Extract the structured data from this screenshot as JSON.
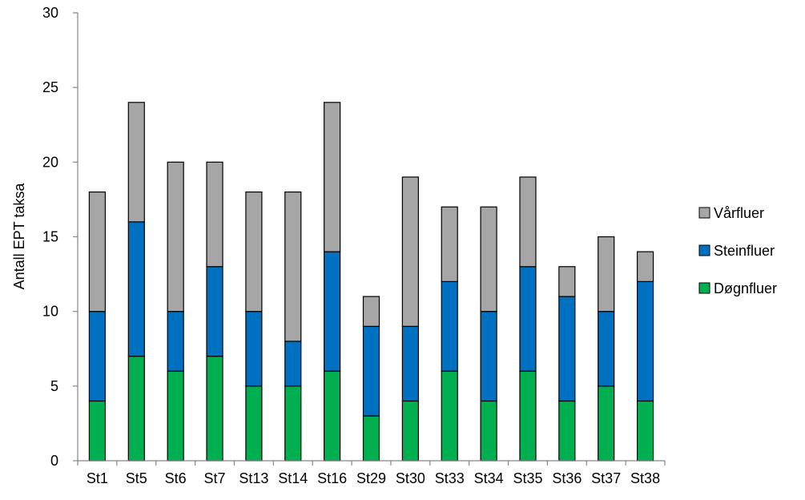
{
  "chart_data": {
    "type": "bar",
    "stacked": true,
    "ylabel": "Antall EPT taksa",
    "xlabel": "",
    "ylim": [
      0,
      30
    ],
    "yticks": [
      0,
      5,
      10,
      15,
      20,
      25,
      30
    ],
    "grid": false,
    "legend_position": "right",
    "categories": [
      "St1",
      "St5",
      "St6",
      "St7",
      "St13",
      "St14",
      "St16",
      "St29",
      "St30",
      "St33",
      "St34",
      "St35",
      "St36",
      "St37",
      "St38"
    ],
    "series": [
      {
        "name": "Døgnfluer",
        "color": "#00b050",
        "values": [
          4,
          7,
          6,
          7,
          5,
          5,
          6,
          3,
          4,
          6,
          4,
          6,
          4,
          5,
          4
        ]
      },
      {
        "name": "Steinfluer",
        "color": "#0070c0",
        "values": [
          6,
          9,
          4,
          6,
          5,
          3,
          8,
          6,
          5,
          6,
          6,
          7,
          7,
          5,
          8
        ]
      },
      {
        "name": "Vårfluer",
        "color": "#a6a6a6",
        "values": [
          8,
          8,
          10,
          7,
          8,
          10,
          10,
          2,
          10,
          5,
          7,
          6,
          2,
          5,
          2
        ]
      }
    ],
    "legend_order": [
      "Vårfluer",
      "Steinfluer",
      "Døgnfluer"
    ]
  }
}
